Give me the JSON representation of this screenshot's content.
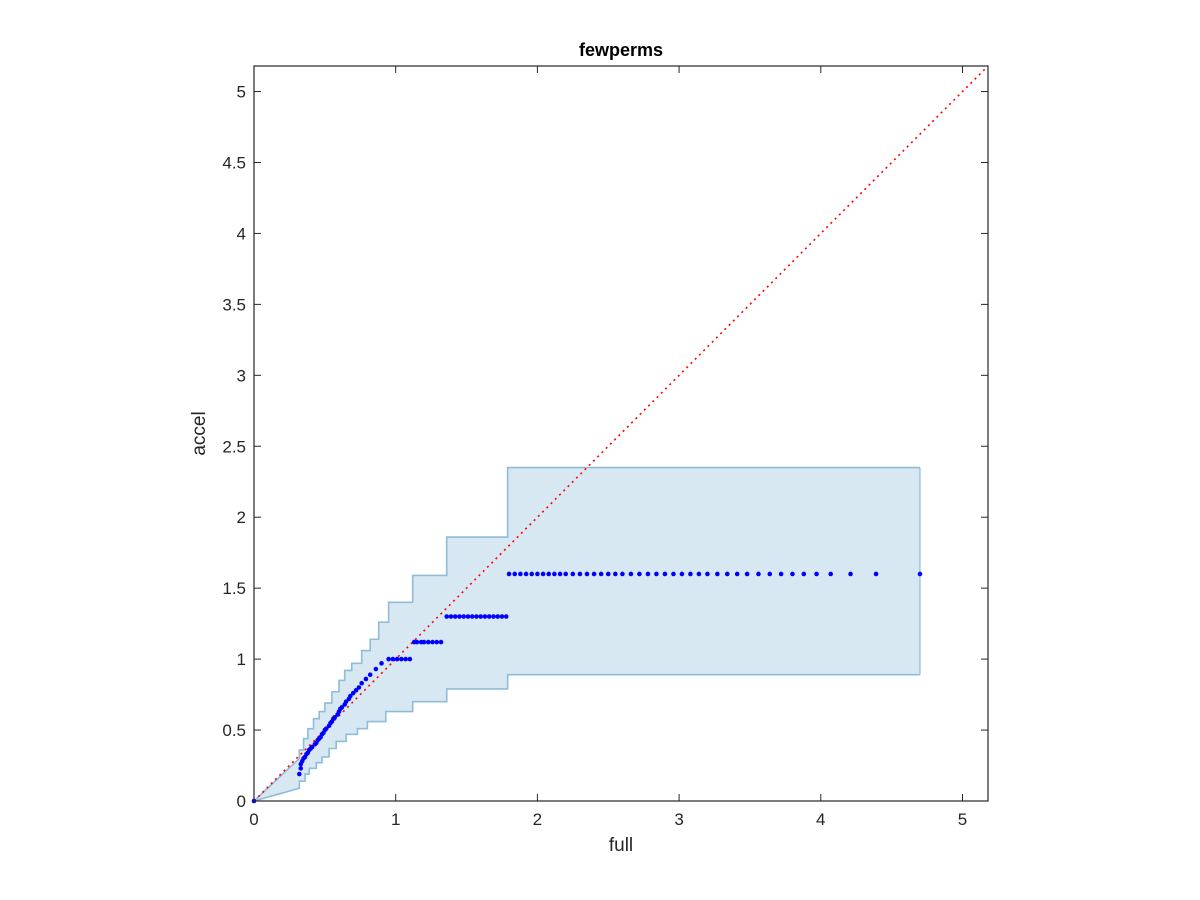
{
  "chart_data": {
    "type": "scatter",
    "title": "fewperms",
    "xlabel": "full",
    "ylabel": "accel",
    "xlim": [
      0,
      5.18
    ],
    "ylim": [
      0,
      5.18
    ],
    "xticks": [
      {
        "value": 0,
        "label": "0"
      },
      {
        "value": 1,
        "label": "1"
      },
      {
        "value": 2,
        "label": "2"
      },
      {
        "value": 3,
        "label": "3"
      },
      {
        "value": 4,
        "label": "4"
      },
      {
        "value": 5,
        "label": "5"
      }
    ],
    "yticks": [
      {
        "value": 0,
        "label": "0"
      },
      {
        "value": 0.5,
        "label": "0.5"
      },
      {
        "value": 1,
        "label": "1"
      },
      {
        "value": 1.5,
        "label": "1.5"
      },
      {
        "value": 2,
        "label": "2"
      },
      {
        "value": 2.5,
        "label": "2.5"
      },
      {
        "value": 3,
        "label": "3"
      },
      {
        "value": 3.5,
        "label": "3.5"
      },
      {
        "value": 4,
        "label": "4"
      },
      {
        "value": 4.5,
        "label": "4.5"
      },
      {
        "value": 5,
        "label": "5"
      }
    ],
    "grid": false,
    "reference_line": {
      "from": [
        0,
        0
      ],
      "to": [
        5.18,
        5.18
      ],
      "style": "dotted",
      "color": "#ff0000"
    },
    "band": {
      "fill_color": "#d8e8f3",
      "edge_color": "#8fbcd8",
      "upper": [
        [
          0,
          0
        ],
        [
          0.32,
          0.3
        ],
        [
          0.32,
          0.36
        ],
        [
          0.35,
          0.36
        ],
        [
          0.35,
          0.44
        ],
        [
          0.38,
          0.44
        ],
        [
          0.38,
          0.51
        ],
        [
          0.42,
          0.51
        ],
        [
          0.42,
          0.58
        ],
        [
          0.46,
          0.58
        ],
        [
          0.46,
          0.63
        ],
        [
          0.5,
          0.63
        ],
        [
          0.5,
          0.69
        ],
        [
          0.55,
          0.69
        ],
        [
          0.55,
          0.77
        ],
        [
          0.6,
          0.77
        ],
        [
          0.6,
          0.85
        ],
        [
          0.64,
          0.85
        ],
        [
          0.64,
          0.92
        ],
        [
          0.69,
          0.92
        ],
        [
          0.69,
          0.97
        ],
        [
          0.76,
          0.97
        ],
        [
          0.76,
          1.06
        ],
        [
          0.82,
          1.06
        ],
        [
          0.82,
          1.14
        ],
        [
          0.88,
          1.14
        ],
        [
          0.88,
          1.26
        ],
        [
          0.95,
          1.26
        ],
        [
          0.95,
          1.4
        ],
        [
          1.12,
          1.4
        ],
        [
          1.12,
          1.59
        ],
        [
          1.36,
          1.59
        ],
        [
          1.36,
          1.86
        ],
        [
          1.79,
          1.86
        ],
        [
          1.79,
          2.35
        ],
        [
          4.7,
          2.35
        ]
      ],
      "lower": [
        [
          0,
          0
        ],
        [
          0.32,
          0.09
        ],
        [
          0.32,
          0.14
        ],
        [
          0.36,
          0.14
        ],
        [
          0.36,
          0.19
        ],
        [
          0.39,
          0.19
        ],
        [
          0.39,
          0.23
        ],
        [
          0.44,
          0.23
        ],
        [
          0.44,
          0.27
        ],
        [
          0.48,
          0.27
        ],
        [
          0.48,
          0.31
        ],
        [
          0.53,
          0.31
        ],
        [
          0.53,
          0.37
        ],
        [
          0.58,
          0.37
        ],
        [
          0.58,
          0.42
        ],
        [
          0.65,
          0.42
        ],
        [
          0.65,
          0.47
        ],
        [
          0.73,
          0.47
        ],
        [
          0.73,
          0.51
        ],
        [
          0.8,
          0.51
        ],
        [
          0.8,
          0.56
        ],
        [
          0.93,
          0.56
        ],
        [
          0.93,
          0.63
        ],
        [
          1.12,
          0.63
        ],
        [
          1.12,
          0.7
        ],
        [
          1.36,
          0.7
        ],
        [
          1.36,
          0.79
        ],
        [
          1.79,
          0.79
        ],
        [
          1.79,
          0.89
        ],
        [
          4.7,
          0.89
        ]
      ]
    },
    "series": [
      {
        "marker_color": "#0000ff",
        "points": [
          [
            0,
            0
          ],
          [
            0.32,
            0.19
          ],
          [
            0.33,
            0.23
          ],
          [
            0.33,
            0.26
          ],
          [
            0.34,
            0.28
          ],
          [
            0.35,
            0.3
          ],
          [
            0.36,
            0.31
          ],
          [
            0.37,
            0.33
          ],
          [
            0.38,
            0.34
          ],
          [
            0.39,
            0.36
          ],
          [
            0.4,
            0.37
          ],
          [
            0.41,
            0.38
          ],
          [
            0.43,
            0.4
          ],
          [
            0.44,
            0.41
          ],
          [
            0.45,
            0.43
          ],
          [
            0.46,
            0.44
          ],
          [
            0.47,
            0.45
          ],
          [
            0.48,
            0.47
          ],
          [
            0.49,
            0.48
          ],
          [
            0.5,
            0.5
          ],
          [
            0.51,
            0.51
          ],
          [
            0.53,
            0.53
          ],
          [
            0.54,
            0.55
          ],
          [
            0.55,
            0.56
          ],
          [
            0.56,
            0.58
          ],
          [
            0.57,
            0.59
          ],
          [
            0.59,
            0.61
          ],
          [
            0.6,
            0.63
          ],
          [
            0.61,
            0.65
          ],
          [
            0.62,
            0.66
          ],
          [
            0.64,
            0.68
          ],
          [
            0.65,
            0.7
          ],
          [
            0.67,
            0.72
          ],
          [
            0.68,
            0.74
          ],
          [
            0.7,
            0.76
          ],
          [
            0.72,
            0.78
          ],
          [
            0.74,
            0.8
          ],
          [
            0.76,
            0.83
          ],
          [
            0.79,
            0.86
          ],
          [
            0.82,
            0.89
          ],
          [
            0.86,
            0.93
          ],
          [
            0.9,
            0.97
          ],
          [
            0.95,
            1.0
          ],
          [
            0.98,
            1.0
          ],
          [
            1.01,
            1.0
          ],
          [
            1.04,
            1.0
          ],
          [
            1.07,
            1.0
          ],
          [
            1.1,
            1.0
          ],
          [
            1.13,
            1.12
          ],
          [
            1.15,
            1.12
          ],
          [
            1.18,
            1.12
          ],
          [
            1.2,
            1.12
          ],
          [
            1.23,
            1.12
          ],
          [
            1.26,
            1.12
          ],
          [
            1.29,
            1.12
          ],
          [
            1.32,
            1.12
          ],
          [
            1.36,
            1.3
          ],
          [
            1.39,
            1.3
          ],
          [
            1.42,
            1.3
          ],
          [
            1.45,
            1.3
          ],
          [
            1.48,
            1.3
          ],
          [
            1.51,
            1.3
          ],
          [
            1.54,
            1.3
          ],
          [
            1.57,
            1.3
          ],
          [
            1.6,
            1.3
          ],
          [
            1.63,
            1.3
          ],
          [
            1.66,
            1.3
          ],
          [
            1.69,
            1.3
          ],
          [
            1.72,
            1.3
          ],
          [
            1.75,
            1.3
          ],
          [
            1.78,
            1.3
          ],
          [
            1.8,
            1.6
          ],
          [
            1.84,
            1.6
          ],
          [
            1.88,
            1.6
          ],
          [
            1.92,
            1.6
          ],
          [
            1.96,
            1.6
          ],
          [
            2.0,
            1.6
          ],
          [
            2.04,
            1.6
          ],
          [
            2.08,
            1.6
          ],
          [
            2.12,
            1.6
          ],
          [
            2.16,
            1.6
          ],
          [
            2.2,
            1.6
          ],
          [
            2.25,
            1.6
          ],
          [
            2.3,
            1.6
          ],
          [
            2.35,
            1.6
          ],
          [
            2.4,
            1.6
          ],
          [
            2.45,
            1.6
          ],
          [
            2.5,
            1.6
          ],
          [
            2.55,
            1.6
          ],
          [
            2.6,
            1.6
          ],
          [
            2.66,
            1.6
          ],
          [
            2.72,
            1.6
          ],
          [
            2.78,
            1.6
          ],
          [
            2.84,
            1.6
          ],
          [
            2.9,
            1.6
          ],
          [
            2.96,
            1.6
          ],
          [
            3.02,
            1.6
          ],
          [
            3.08,
            1.6
          ],
          [
            3.14,
            1.6
          ],
          [
            3.2,
            1.6
          ],
          [
            3.27,
            1.6
          ],
          [
            3.34,
            1.6
          ],
          [
            3.41,
            1.6
          ],
          [
            3.48,
            1.6
          ],
          [
            3.56,
            1.6
          ],
          [
            3.64,
            1.6
          ],
          [
            3.72,
            1.6
          ],
          [
            3.8,
            1.6
          ],
          [
            3.88,
            1.6
          ],
          [
            3.97,
            1.6
          ],
          [
            4.07,
            1.6
          ],
          [
            4.21,
            1.6
          ],
          [
            4.39,
            1.6
          ],
          [
            4.7,
            1.6
          ]
        ]
      }
    ]
  }
}
